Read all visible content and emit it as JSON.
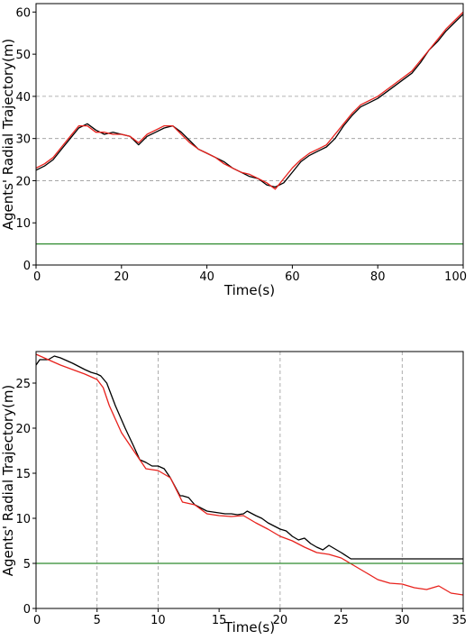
{
  "chart_data": [
    {
      "type": "line",
      "xlabel": "Time(s)",
      "ylabel": "Agents' Radial Trajectory(m)",
      "xlim": [
        0,
        100
      ],
      "ylim": [
        0,
        62
      ],
      "xticks": [
        0,
        20,
        40,
        60,
        80,
        100
      ],
      "yticks": [
        0,
        10,
        20,
        30,
        40,
        50,
        60
      ],
      "grid": "horizontal dashed at 20, 30, 40",
      "grid_y": [
        20,
        30,
        40
      ],
      "grid_x": [],
      "series": [
        {
          "color": "#000000",
          "x": [
            0,
            2,
            4,
            6,
            8,
            10,
            12,
            14,
            16,
            18,
            20,
            22,
            24,
            26,
            28,
            30,
            32,
            34,
            36,
            38,
            40,
            42,
            44,
            46,
            48,
            50,
            52,
            54,
            56,
            58,
            60,
            62,
            64,
            66,
            68,
            70,
            72,
            74,
            76,
            78,
            80,
            82,
            84,
            86,
            88,
            90,
            92,
            94,
            96,
            98,
            100
          ],
          "y": [
            22.5,
            23.5,
            25,
            27.5,
            30,
            32.5,
            33.5,
            32,
            31,
            31.5,
            31,
            30.5,
            28.5,
            30.5,
            31.5,
            32.5,
            33,
            31.5,
            29.5,
            27.5,
            26.5,
            25.5,
            24.5,
            23,
            22,
            21,
            20.5,
            19,
            18.5,
            19.5,
            22,
            24.5,
            26,
            27,
            28,
            30,
            33,
            35.5,
            37.5,
            38.5,
            39.5,
            41,
            42.5,
            44,
            45.5,
            48,
            51,
            53,
            55.5,
            57.5,
            59.5
          ]
        },
        {
          "color": "#e8211c",
          "x": [
            0,
            2,
            4,
            6,
            8,
            10,
            12,
            14,
            16,
            18,
            20,
            22,
            24,
            26,
            28,
            30,
            32,
            34,
            36,
            38,
            40,
            42,
            44,
            46,
            48,
            50,
            52,
            54,
            56,
            58,
            60,
            62,
            64,
            66,
            68,
            70,
            72,
            74,
            76,
            78,
            80,
            82,
            84,
            86,
            88,
            90,
            92,
            94,
            96,
            98,
            100
          ],
          "y": [
            23,
            24,
            25.5,
            28,
            30.5,
            33,
            33,
            31.5,
            31.5,
            31,
            31,
            30.5,
            29,
            31,
            32,
            33,
            33,
            31,
            29,
            27.5,
            26.5,
            25.5,
            24,
            23,
            22,
            21.5,
            20.5,
            19.5,
            18,
            20.5,
            23,
            25,
            26.5,
            27.5,
            28.5,
            31,
            33.5,
            36,
            38,
            39,
            40,
            41.5,
            43,
            44.5,
            46,
            48.5,
            51,
            53.5,
            56,
            58,
            60
          ]
        },
        {
          "color": "#2e8b2e",
          "x": [
            0,
            100
          ],
          "y": [
            5,
            5
          ]
        }
      ]
    },
    {
      "type": "line",
      "xlabel": "Time(s)",
      "ylabel": "Agents' Radial Trajectory(m)",
      "xlim": [
        0,
        35
      ],
      "ylim": [
        0,
        28.5
      ],
      "xticks": [
        0,
        5,
        10,
        15,
        20,
        25,
        30,
        35
      ],
      "yticks": [
        0,
        5,
        10,
        15,
        20,
        25
      ],
      "grid": "vertical dashed at 5, 10, 20, 30",
      "grid_y": [],
      "grid_x": [
        5,
        10,
        20,
        30
      ],
      "series": [
        {
          "color": "#000000",
          "x": [
            0,
            0.3,
            1,
            1.5,
            2,
            3,
            4,
            4.5,
            5,
            5.3,
            5.8,
            6.5,
            7.3,
            8,
            8.5,
            9,
            9.5,
            10,
            10.5,
            11,
            11.8,
            12,
            12.5,
            13,
            14,
            15,
            15.5,
            16,
            16.5,
            17,
            17.3,
            18,
            18.5,
            19,
            20,
            20.5,
            21,
            21.5,
            22,
            22.5,
            23,
            23.5,
            24,
            25,
            25.8,
            26,
            30,
            35
          ],
          "y": [
            27,
            27.6,
            27.6,
            28,
            27.8,
            27.2,
            26.5,
            26.2,
            26,
            25.8,
            25,
            22.5,
            20,
            18,
            16.5,
            16.2,
            15.8,
            15.8,
            15.5,
            14.5,
            12.5,
            12.5,
            12.3,
            11.5,
            10.8,
            10.6,
            10.5,
            10.5,
            10.4,
            10.5,
            10.8,
            10.3,
            10,
            9.5,
            8.8,
            8.6,
            8,
            7.6,
            7.8,
            7.2,
            6.8,
            6.5,
            7,
            6.2,
            5.5,
            5.5,
            5.5,
            5.5
          ]
        },
        {
          "color": "#e8211c",
          "x": [
            0,
            1,
            2,
            3,
            4,
            5,
            5.5,
            6,
            7,
            8,
            9,
            10,
            11,
            12,
            13,
            14,
            15,
            16,
            17,
            18,
            19,
            20,
            21,
            22,
            23,
            24,
            25,
            26,
            27,
            28,
            29,
            30,
            31,
            32,
            33,
            34,
            35
          ],
          "y": [
            28.2,
            27.6,
            27,
            26.5,
            26,
            25.4,
            24.5,
            22.5,
            19.5,
            17.5,
            15.5,
            15.3,
            14.5,
            11.8,
            11.5,
            10.5,
            10.3,
            10.2,
            10.3,
            9.5,
            8.8,
            8,
            7.5,
            6.8,
            6.2,
            6,
            5.6,
            4.8,
            4,
            3.2,
            2.8,
            2.7,
            2.3,
            2.1,
            2.5,
            1.7,
            1.5
          ]
        },
        {
          "color": "#2e8b2e",
          "x": [
            0,
            35
          ],
          "y": [
            5,
            5
          ]
        }
      ]
    }
  ]
}
